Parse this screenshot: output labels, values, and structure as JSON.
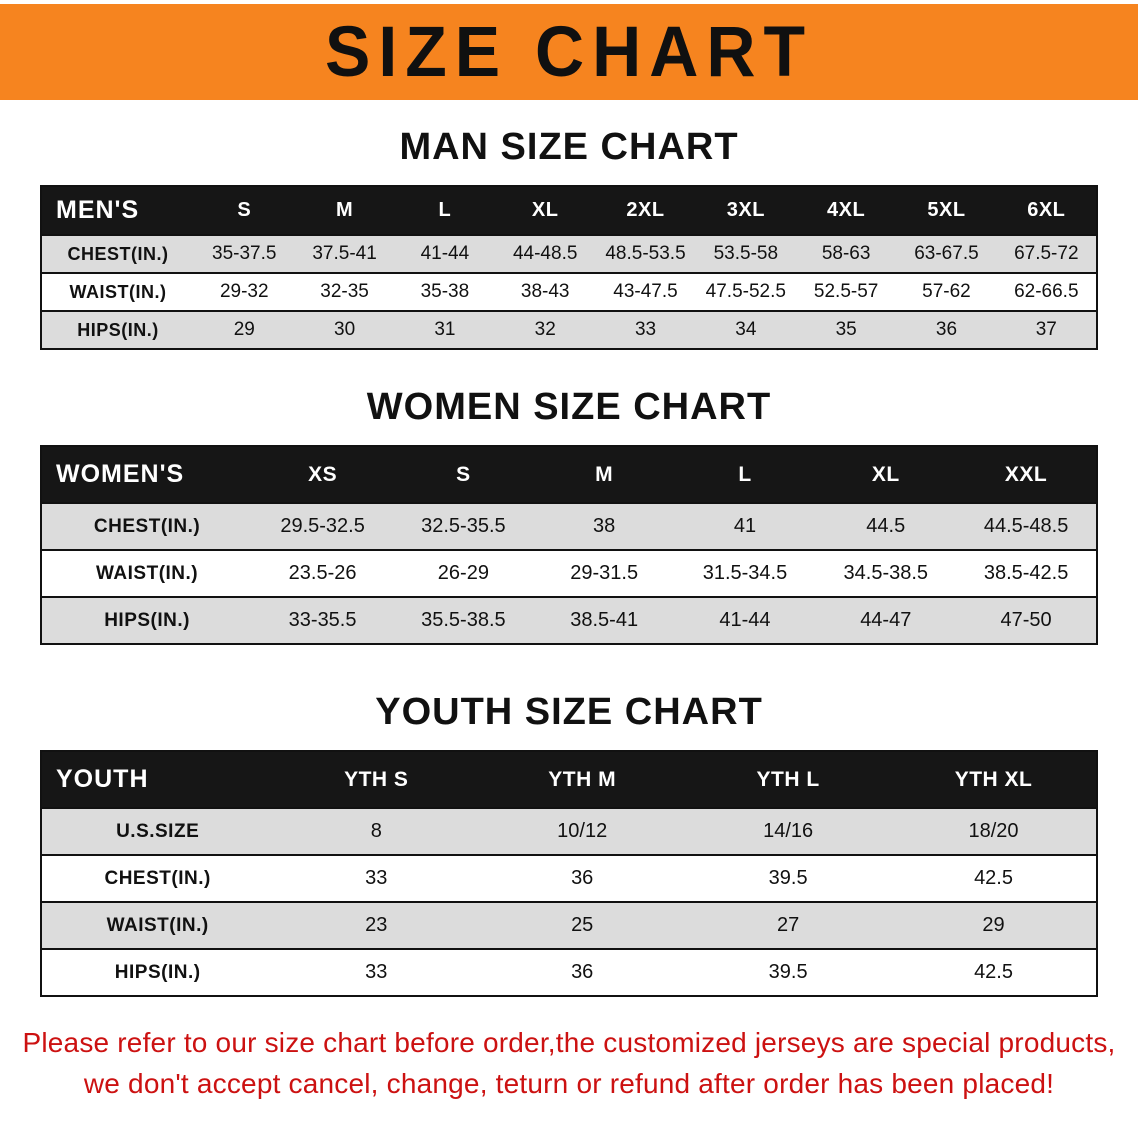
{
  "banner": {
    "title": "SIZE CHART",
    "bg_color": "#F6841F",
    "text_color": "#101010"
  },
  "colors": {
    "table_header_bg": "#161616",
    "table_header_text": "#FFFFFF",
    "shaded_row_bg": "#DCDCDC",
    "disclaimer_text": "#CC1111"
  },
  "sections": [
    {
      "heading": "MAN SIZE CHART",
      "table": {
        "header": [
          "MEN'S",
          "S",
          "M",
          "L",
          "XL",
          "2XL",
          "3XL",
          "4XL",
          "5XL",
          "6XL"
        ],
        "rows": [
          [
            "CHEST(IN.)",
            "35-37.5",
            "37.5-41",
            "41-44",
            "44-48.5",
            "48.5-53.5",
            "53.5-58",
            "58-63",
            "63-67.5",
            "67.5-72"
          ],
          [
            "WAIST(IN.)",
            "29-32",
            "32-35",
            "35-38",
            "38-43",
            "43-47.5",
            "47.5-52.5",
            "52.5-57",
            "57-62",
            "62-66.5"
          ],
          [
            "HIPS(IN.)",
            "29",
            "30",
            "31",
            "32",
            "33",
            "34",
            "35",
            "36",
            "37"
          ]
        ]
      }
    },
    {
      "heading": "WOMEN SIZE CHART",
      "table": {
        "header": [
          "WOMEN'S",
          "XS",
          "S",
          "M",
          "L",
          "XL",
          "XXL"
        ],
        "rows": [
          [
            "CHEST(IN.)",
            "29.5-32.5",
            "32.5-35.5",
            "38",
            "41",
            "44.5",
            "44.5-48.5"
          ],
          [
            "WAIST(IN.)",
            "23.5-26",
            "26-29",
            "29-31.5",
            "31.5-34.5",
            "34.5-38.5",
            "38.5-42.5"
          ],
          [
            "HIPS(IN.)",
            "33-35.5",
            "35.5-38.5",
            "38.5-41",
            "41-44",
            "44-47",
            "47-50"
          ]
        ]
      }
    },
    {
      "heading": "YOUTH SIZE CHART",
      "table": {
        "header": [
          "YOUTH",
          "YTH S",
          "YTH M",
          "YTH L",
          "YTH XL"
        ],
        "rows": [
          [
            "U.S.SIZE",
            "8",
            "10/12",
            "14/16",
            "18/20"
          ],
          [
            "CHEST(IN.)",
            "33",
            "36",
            "39.5",
            "42.5"
          ],
          [
            "WAIST(IN.)",
            "23",
            "25",
            "27",
            "29"
          ],
          [
            "HIPS(IN.)",
            "33",
            "36",
            "39.5",
            "42.5"
          ]
        ]
      }
    }
  ],
  "disclaimer": {
    "line1": "Please refer to our size chart before order,the customized jerseys are special products,",
    "line2": "we don't accept cancel, change, teturn or refund after order has been placed!"
  }
}
